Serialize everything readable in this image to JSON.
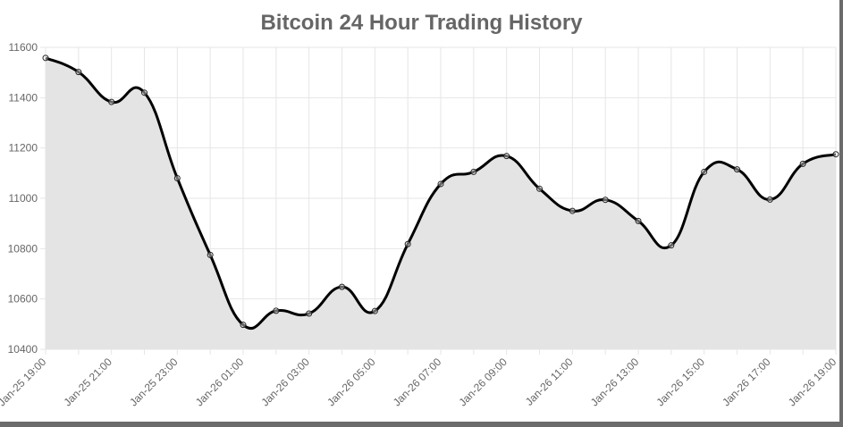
{
  "chart_data": {
    "type": "line",
    "title": "Bitcoin 24 Hour Trading History",
    "xlabel": "",
    "ylabel": "",
    "ylim": [
      10400,
      11600
    ],
    "yticks": [
      10400,
      10600,
      10800,
      11000,
      11200,
      11400,
      11600
    ],
    "grid": true,
    "legend": "none",
    "fill": true,
    "colors": {
      "line": "#000000",
      "fill": "#e4e4e4",
      "grid": "#e6e6e6",
      "text": "#666666"
    },
    "x": [
      "Jan-25 19:00",
      "Jan-25 20:00",
      "Jan-25 21:00",
      "Jan-25 22:00",
      "Jan-25 23:00",
      "Jan-26 00:00",
      "Jan-26 01:00",
      "Jan-26 02:00",
      "Jan-26 03:00",
      "Jan-26 04:00",
      "Jan-26 05:00",
      "Jan-26 06:00",
      "Jan-26 07:00",
      "Jan-26 08:00",
      "Jan-26 09:00",
      "Jan-26 10:00",
      "Jan-26 11:00",
      "Jan-26 12:00",
      "Jan-26 13:00",
      "Jan-26 14:00",
      "Jan-26 15:00",
      "Jan-26 16:00",
      "Jan-26 17:00",
      "Jan-26 18:00",
      "Jan-26 19:00"
    ],
    "x_tick_labels": [
      "Jan-25 19:00",
      "Jan-25 21:00",
      "Jan-25 23:00",
      "Jan-26 01:00",
      "Jan-26 03:00",
      "Jan-26 05:00",
      "Jan-26 07:00",
      "Jan-26 09:00",
      "Jan-26 11:00",
      "Jan-26 13:00",
      "Jan-26 15:00",
      "Jan-26 17:00",
      "Jan-26 19:00"
    ],
    "series": [
      {
        "values": [
          11558,
          11502,
          11383,
          11420,
          11080,
          10775,
          10497,
          10553,
          10542,
          10648,
          10552,
          10818,
          11057,
          11105,
          11168,
          11038,
          10950,
          10994,
          10910,
          10813,
          11105,
          11115,
          10995,
          11137,
          11175
        ]
      }
    ]
  }
}
